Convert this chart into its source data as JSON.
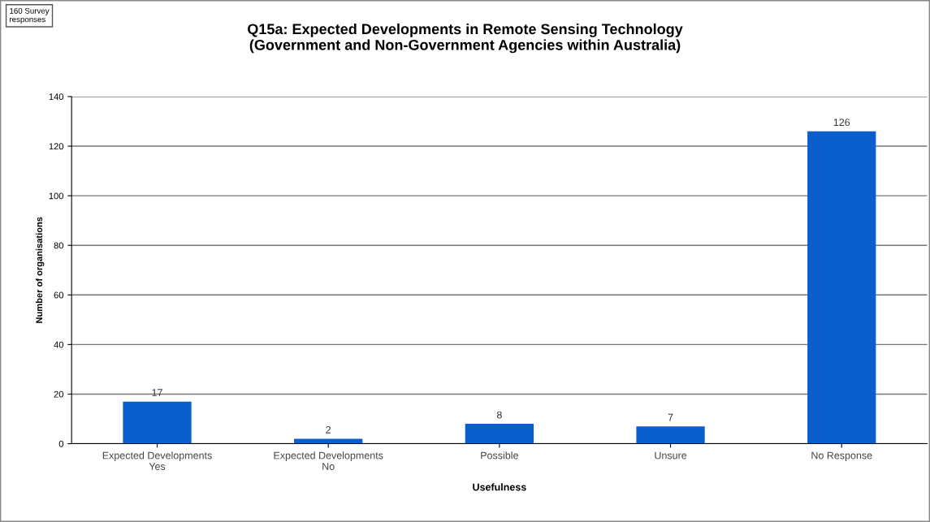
{
  "chart_data": {
    "type": "bar",
    "title": "Q15a: Expected Developments in Remote Sensing Technology\n(Government and Non-Government Agencies within Australia)",
    "xlabel": "Usefulness",
    "ylabel": "Number of organisations",
    "annotations": [
      "160 Survey\nresponses"
    ],
    "categories": [
      "Expected Developments\nYes",
      "Expected Developments\nNo",
      "Possible",
      "Unsure",
      "No Response"
    ],
    "values": [
      17,
      2,
      8,
      7,
      126
    ],
    "color": "#0a5fcc",
    "ylim": [
      0,
      140
    ],
    "yticks": [
      0,
      20,
      40,
      60,
      80,
      100,
      120,
      140
    ],
    "grid": "y",
    "data_labels": true
  }
}
